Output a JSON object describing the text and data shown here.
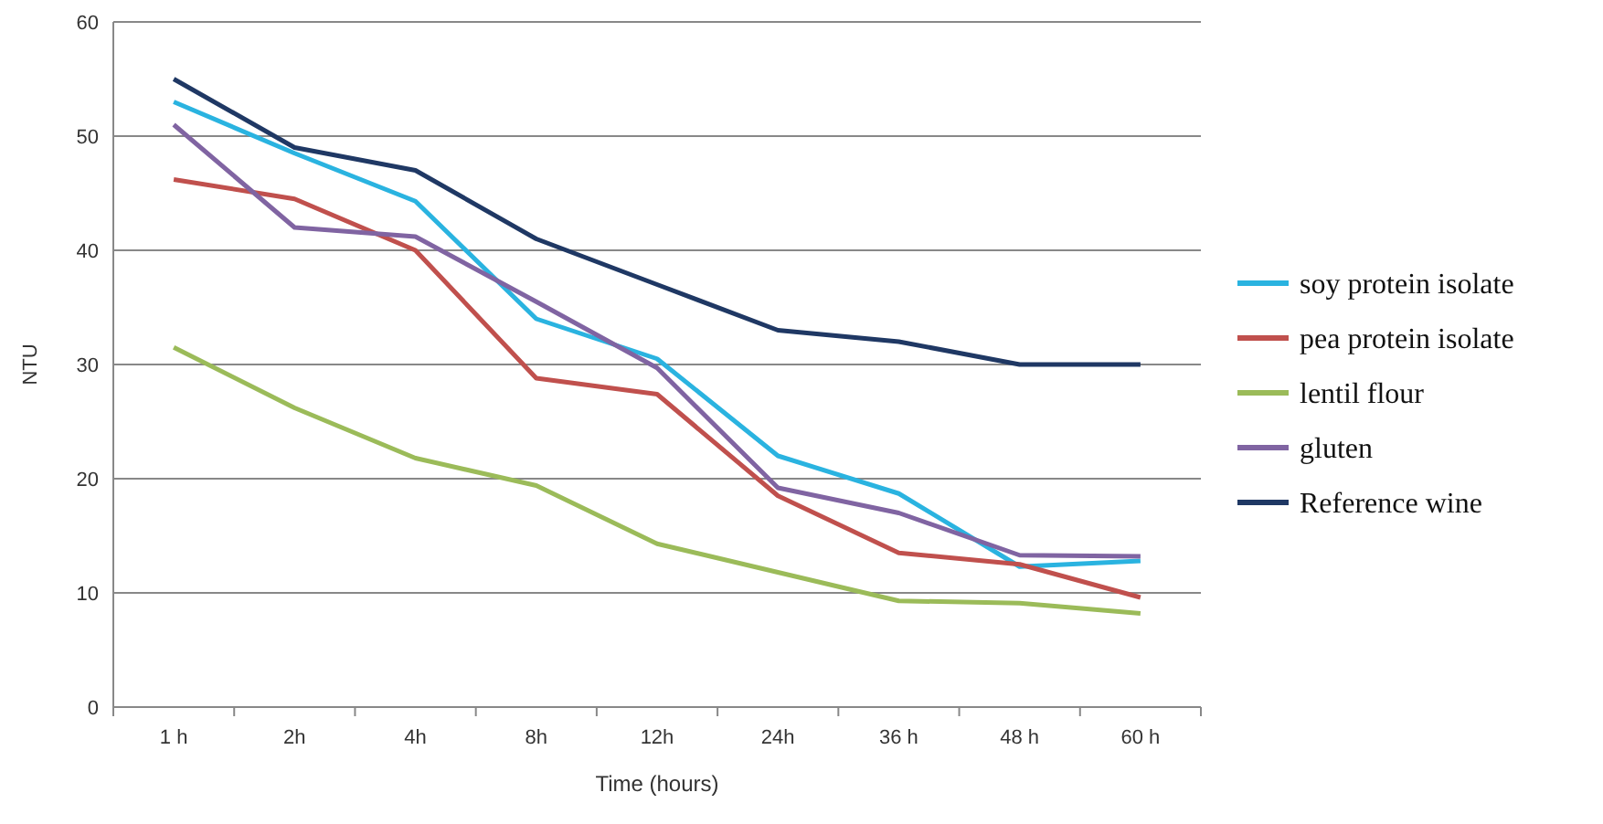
{
  "chart_data": {
    "type": "line",
    "xlabel": "Time  (hours)",
    "ylabel": "NTU",
    "categories": [
      "1 h",
      "2h",
      "4h",
      "8h",
      "12h",
      "24h",
      "36 h",
      "48 h",
      "60 h"
    ],
    "ylim": [
      0,
      60
    ],
    "yticks": [
      0,
      10,
      20,
      30,
      40,
      50,
      60
    ],
    "grid": "y",
    "legend": "right",
    "marker": "none",
    "line_style": "solid",
    "series": [
      {
        "name": "soy protein isolate",
        "color": "#2ab3e0",
        "values": [
          53,
          48.5,
          44.3,
          34,
          30.5,
          22,
          18.7,
          12.3,
          12.8
        ]
      },
      {
        "name": "pea protein isolate",
        "color": "#c0504d",
        "values": [
          46.2,
          44.5,
          40,
          28.8,
          27.4,
          18.5,
          13.5,
          12.5,
          9.6
        ]
      },
      {
        "name": "lentil flour",
        "color": "#9bbb59",
        "values": [
          31.5,
          26.2,
          21.8,
          19.4,
          14.3,
          11.8,
          9.3,
          9.1,
          8.2
        ]
      },
      {
        "name": "gluten",
        "color": "#8064a2",
        "values": [
          51,
          42,
          41.2,
          35.5,
          29.7,
          19.2,
          17,
          13.3,
          13.2
        ]
      },
      {
        "name": "Reference wine",
        "color": "#1f3864",
        "values": [
          55,
          49,
          47,
          41,
          37,
          33,
          32,
          30,
          30
        ]
      }
    ]
  }
}
